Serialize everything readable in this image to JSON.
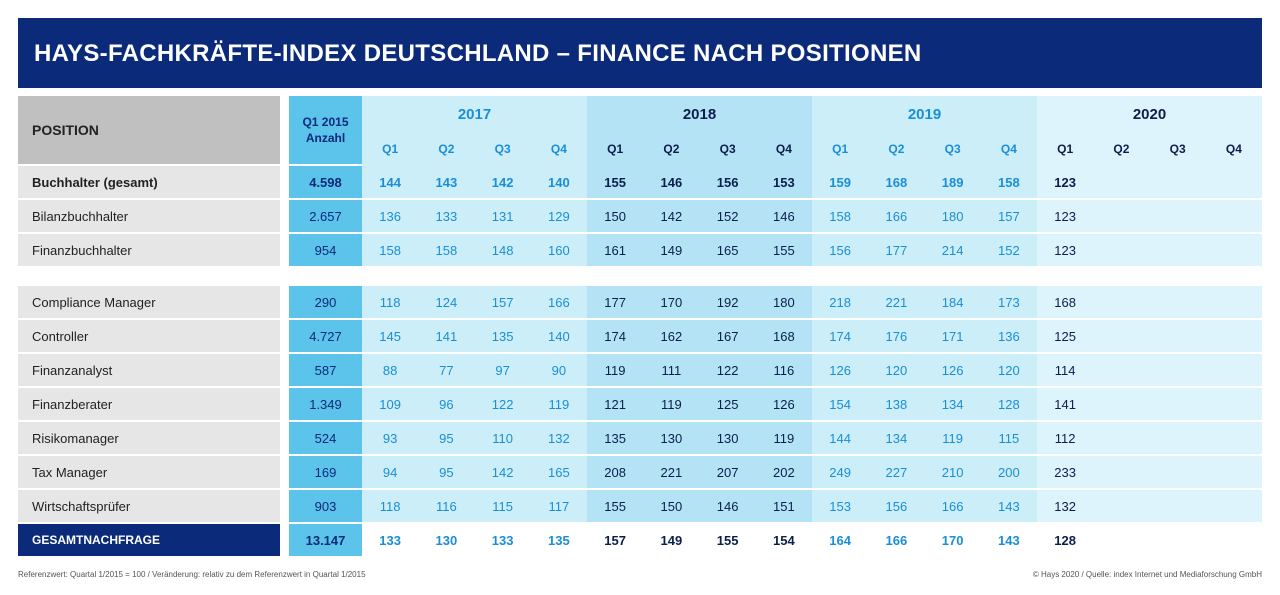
{
  "title": "HAYS-FACHKRÄFTE-INDEX DEUTSCHLAND – FINANCE NACH POSITIONEN",
  "header": {
    "position": "POSITION",
    "q1_2015_line1": "Q1 2015",
    "q1_2015_line2": "Anzahl",
    "years": [
      "2017",
      "2018",
      "2019",
      "2020"
    ],
    "quarters": [
      "Q1",
      "Q2",
      "Q3",
      "Q4"
    ]
  },
  "rows": [
    {
      "name": "Buchhalter (gesamt)",
      "q1_2015": "4.598",
      "values": [
        "144",
        "143",
        "142",
        "140",
        "155",
        "146",
        "156",
        "153",
        "159",
        "168",
        "189",
        "158",
        "123",
        "",
        "",
        ""
      ],
      "bold": true
    },
    {
      "name": "Bilanzbuchhalter",
      "q1_2015": "2.657",
      "values": [
        "136",
        "133",
        "131",
        "129",
        "150",
        "142",
        "152",
        "146",
        "158",
        "166",
        "180",
        "157",
        "123",
        "",
        "",
        ""
      ]
    },
    {
      "name": "Finanzbuchhalter",
      "q1_2015": "954",
      "values": [
        "158",
        "158",
        "148",
        "160",
        "161",
        "149",
        "165",
        "155",
        "156",
        "177",
        "214",
        "152",
        "123",
        "",
        "",
        ""
      ]
    },
    {
      "name": "Compliance Manager",
      "q1_2015": "290",
      "values": [
        "118",
        "124",
        "157",
        "166",
        "177",
        "170",
        "192",
        "180",
        "218",
        "221",
        "184",
        "173",
        "168",
        "",
        "",
        ""
      ]
    },
    {
      "name": "Controller",
      "q1_2015": "4.727",
      "values": [
        "145",
        "141",
        "135",
        "140",
        "174",
        "162",
        "167",
        "168",
        "174",
        "176",
        "171",
        "136",
        "125",
        "",
        "",
        ""
      ]
    },
    {
      "name": "Finanzanalyst",
      "q1_2015": "587",
      "values": [
        "88",
        "77",
        "97",
        "90",
        "119",
        "111",
        "122",
        "116",
        "126",
        "120",
        "126",
        "120",
        "114",
        "",
        "",
        ""
      ]
    },
    {
      "name": "Finanzberater",
      "q1_2015": "1.349",
      "values": [
        "109",
        "96",
        "122",
        "119",
        "121",
        "119",
        "125",
        "126",
        "154",
        "138",
        "134",
        "128",
        "141",
        "",
        "",
        ""
      ]
    },
    {
      "name": "Risikomanager",
      "q1_2015": "524",
      "values": [
        "93",
        "95",
        "110",
        "132",
        "135",
        "130",
        "130",
        "119",
        "144",
        "134",
        "119",
        "115",
        "112",
        "",
        "",
        ""
      ]
    },
    {
      "name": "Tax Manager",
      "q1_2015": "169",
      "values": [
        "94",
        "95",
        "142",
        "165",
        "208",
        "221",
        "207",
        "202",
        "249",
        "227",
        "210",
        "200",
        "233",
        "",
        "",
        ""
      ]
    },
    {
      "name": "Wirtschaftsprüfer",
      "q1_2015": "903",
      "values": [
        "118",
        "116",
        "115",
        "117",
        "155",
        "150",
        "146",
        "151",
        "153",
        "156",
        "166",
        "143",
        "132",
        "",
        "",
        ""
      ]
    }
  ],
  "total": {
    "name": "GESAMTNACHFRAGE",
    "q1_2015": "13.147",
    "values": [
      "133",
      "130",
      "133",
      "135",
      "157",
      "149",
      "155",
      "154",
      "164",
      "166",
      "170",
      "143",
      "128",
      "",
      "",
      ""
    ]
  },
  "footer": {
    "left": "Referenzwert: Quartal 1/2015 = 100 / Veränderung: relativ zu dem Referenzwert in Quartal 1/2015",
    "right": "© Hays 2020 / Quelle: index Internet und Mediaforschung GmbH"
  },
  "colors": {
    "navy": "#0b2a7a",
    "grey_header": "#c0c0c0",
    "grey_row": "#e6e6e6",
    "q1_2015_col": "#5cc3ea",
    "year_2017": "#cceef9",
    "year_2018": "#b4e3f6",
    "year_2019": "#cceef9",
    "year_2020": "#def4fc",
    "text_2017_2019": "#1a8ed6",
    "text_2018_2020": "#0b1f4d"
  }
}
